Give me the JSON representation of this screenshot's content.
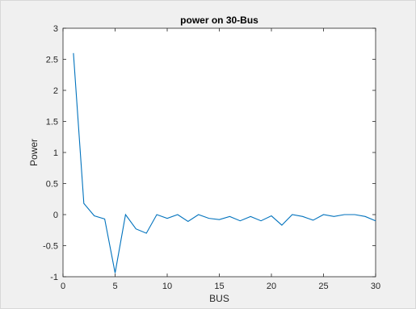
{
  "chart_data": {
    "type": "line",
    "title": "power on 30-Bus",
    "xlabel": "BUS",
    "ylabel": "Power",
    "xlim": [
      0,
      30
    ],
    "ylim": [
      -1,
      3
    ],
    "x_ticks": [
      0,
      5,
      10,
      15,
      20,
      25,
      30
    ],
    "y_ticks": [
      -1,
      -0.5,
      0,
      0.5,
      1,
      1.5,
      2,
      2.5,
      3
    ],
    "grid": false,
    "legend": "none",
    "series": [
      {
        "color": "#0072bd",
        "x": [
          1,
          2,
          3,
          4,
          5,
          6,
          7,
          8,
          9,
          10,
          11,
          12,
          13,
          14,
          15,
          16,
          17,
          18,
          19,
          20,
          21,
          22,
          23,
          24,
          25,
          26,
          27,
          28,
          29,
          30
        ],
        "y": [
          2.6,
          0.18,
          -0.02,
          -0.07,
          -0.94,
          0.0,
          -0.23,
          -0.3,
          0.0,
          -0.06,
          0.0,
          -0.11,
          0.0,
          -0.06,
          -0.08,
          -0.03,
          -0.1,
          -0.03,
          -0.1,
          -0.02,
          -0.17,
          0.0,
          -0.03,
          -0.09,
          0.0,
          -0.03,
          0.0,
          0.0,
          -0.03,
          -0.1
        ]
      }
    ]
  },
  "colors": {
    "figure_background": "#f0f0f0",
    "axes_background": "#ffffff",
    "axis_color": "#262626",
    "line_color": "#0072bd"
  }
}
